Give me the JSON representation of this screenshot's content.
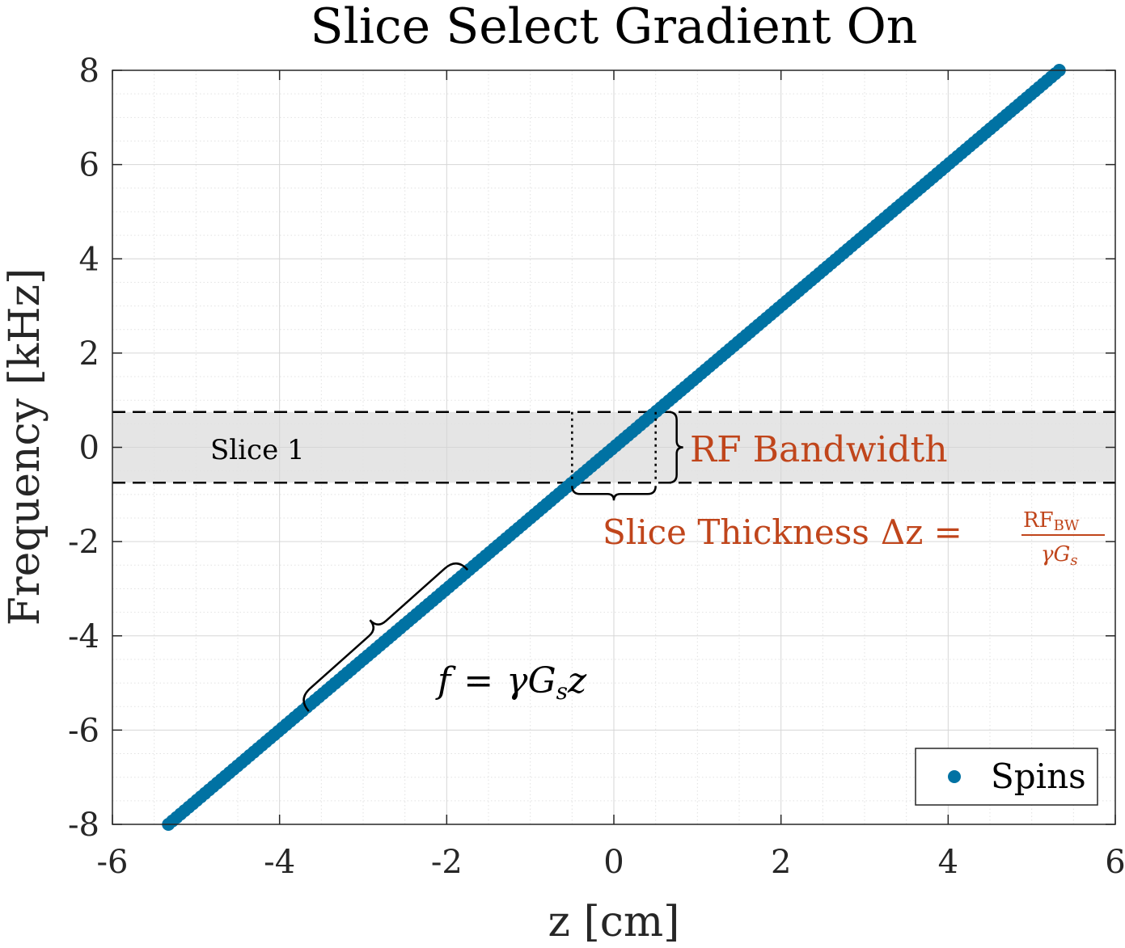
{
  "chart_data": {
    "type": "scatter",
    "title": "Slice Select Gradient On",
    "xlabel": "z [cm]",
    "ylabel": "Frequency [kHz]",
    "xlim": [
      -6,
      6
    ],
    "ylim": [
      -8,
      8
    ],
    "xticks": [
      "-6",
      "-4",
      "-2",
      "0",
      "2",
      "4",
      "6"
    ],
    "yticks": [
      "-8",
      "-6",
      "-4",
      "-2",
      "0",
      "2",
      "4",
      "6",
      "8"
    ],
    "grid": true,
    "minor_grid": true,
    "legend_position": "bottom-right",
    "series": [
      {
        "name": "Spins",
        "color": "#0072a3",
        "x_range": [
          -5.33,
          5.33
        ],
        "y_range": [
          -8,
          8
        ],
        "slope_khz_per_cm": 1.5
      }
    ],
    "slice_band": {
      "label": "Slice 1",
      "y_range": [
        -0.75,
        0.75
      ],
      "fill": "#e5e5e5"
    },
    "annotations": {
      "rf_bandwidth": "RF Bandwidth",
      "slice_thickness": "Slice Thickness",
      "slice_thickness_eq": "Δz =",
      "frac_numerator": "RF",
      "frac_numerator_sub": "BW",
      "frac_denominator": "γG",
      "frac_denominator_sub": "s",
      "relation_lhs": "f",
      "relation_eq": "=",
      "relation_rhs": "γG",
      "relation_rhs_sub": "s",
      "relation_rhs_tail": "z",
      "accent_color": "#c0451b"
    }
  }
}
